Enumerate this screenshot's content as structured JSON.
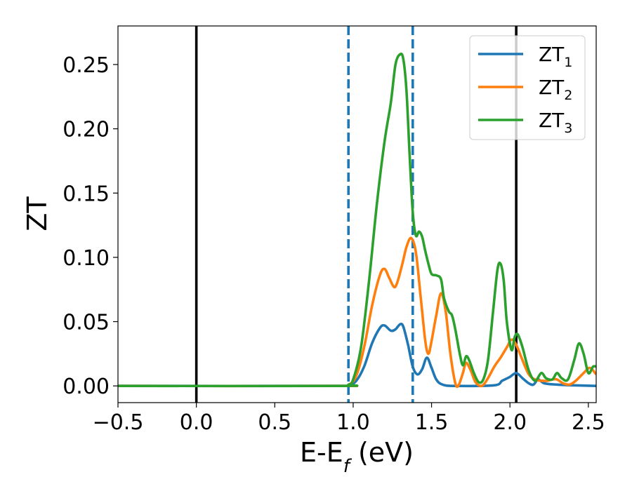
{
  "chart_data": {
    "type": "line",
    "xlabel": "E-E",
    "xlabel_sub": "f",
    "xlabel_unit": " (eV)",
    "ylabel": "ZT",
    "xlim": [
      -0.5,
      2.55
    ],
    "ylim": [
      -0.013,
      0.28
    ],
    "x_ticks": [
      -0.5,
      0.0,
      0.5,
      1.0,
      1.5,
      2.0,
      2.5
    ],
    "x_tick_labels": [
      "−0.5",
      "0.0",
      "0.5",
      "1.0",
      "1.5",
      "2.0",
      "2.5"
    ],
    "y_ticks": [
      0.0,
      0.05,
      0.1,
      0.15,
      0.2,
      0.25
    ],
    "y_tick_labels": [
      "0.00",
      "0.05",
      "0.10",
      "0.15",
      "0.20",
      "0.25"
    ],
    "grid": false,
    "legend_position": "top-right",
    "vertical_lines": [
      {
        "x": 0.0,
        "style": "solid",
        "color": "#000000"
      },
      {
        "x": 2.04,
        "style": "solid",
        "color": "#000000"
      },
      {
        "x": 0.97,
        "style": "dashed",
        "color": "#1f77b4"
      },
      {
        "x": 1.38,
        "style": "dashed",
        "color": "#1f77b4"
      }
    ],
    "series": [
      {
        "name": "ZT",
        "name_sub": "1",
        "color": "#1f77b4",
        "points": [
          [
            -0.5,
            0
          ],
          [
            0.9,
            0
          ],
          [
            0.97,
            0.0005
          ],
          [
            1.02,
            0.004
          ],
          [
            1.07,
            0.015
          ],
          [
            1.12,
            0.033
          ],
          [
            1.17,
            0.045
          ],
          [
            1.2,
            0.047
          ],
          [
            1.24,
            0.043
          ],
          [
            1.27,
            0.044
          ],
          [
            1.3,
            0.048
          ],
          [
            1.32,
            0.046
          ],
          [
            1.35,
            0.032
          ],
          [
            1.38,
            0.015
          ],
          [
            1.41,
            0.009
          ],
          [
            1.44,
            0.013
          ],
          [
            1.47,
            0.022
          ],
          [
            1.5,
            0.014
          ],
          [
            1.53,
            0.005
          ],
          [
            1.57,
            0.001
          ],
          [
            1.65,
            0
          ],
          [
            1.9,
            0.0005
          ],
          [
            1.95,
            0.004
          ],
          [
            2.0,
            0.007
          ],
          [
            2.04,
            0.01
          ],
          [
            2.08,
            0.006
          ],
          [
            2.12,
            0.002
          ],
          [
            2.15,
            0.001
          ],
          [
            2.18,
            0.005
          ],
          [
            2.22,
            0.002
          ],
          [
            2.3,
            0.001
          ],
          [
            2.4,
            0.0005
          ],
          [
            2.55,
            0
          ]
        ]
      },
      {
        "name": "ZT",
        "name_sub": "2",
        "color": "#ff7f0e",
        "points": [
          [
            -0.5,
            0
          ],
          [
            0.9,
            0
          ],
          [
            0.97,
            0.0008
          ],
          [
            1.02,
            0.008
          ],
          [
            1.07,
            0.03
          ],
          [
            1.12,
            0.062
          ],
          [
            1.17,
            0.086
          ],
          [
            1.2,
            0.091
          ],
          [
            1.23,
            0.084
          ],
          [
            1.26,
            0.077
          ],
          [
            1.28,
            0.08
          ],
          [
            1.31,
            0.093
          ],
          [
            1.34,
            0.108
          ],
          [
            1.37,
            0.115
          ],
          [
            1.4,
            0.104
          ],
          [
            1.43,
            0.07
          ],
          [
            1.46,
            0.035
          ],
          [
            1.48,
            0.025
          ],
          [
            1.5,
            0.035
          ],
          [
            1.53,
            0.055
          ],
          [
            1.56,
            0.072
          ],
          [
            1.59,
            0.058
          ],
          [
            1.62,
            0.025
          ],
          [
            1.65,
            0.003
          ],
          [
            1.67,
            0.0
          ],
          [
            1.7,
            0.01
          ],
          [
            1.72,
            0.018
          ],
          [
            1.75,
            0.012
          ],
          [
            1.78,
            0.003
          ],
          [
            1.82,
            0.0
          ],
          [
            1.86,
            0.006
          ],
          [
            1.9,
            0.015
          ],
          [
            1.94,
            0.022
          ],
          [
            1.98,
            0.03
          ],
          [
            2.01,
            0.036
          ],
          [
            2.04,
            0.032
          ],
          [
            2.08,
            0.02
          ],
          [
            2.12,
            0.009
          ],
          [
            2.16,
            0.005
          ],
          [
            2.2,
            0.004
          ],
          [
            2.24,
            0.004
          ],
          [
            2.27,
            0.005
          ],
          [
            2.3,
            0.005
          ],
          [
            2.34,
            0.002
          ],
          [
            2.38,
            0.001
          ],
          [
            2.42,
            0.004
          ],
          [
            2.47,
            0.01
          ],
          [
            2.51,
            0.014
          ],
          [
            2.55,
            0.009
          ]
        ]
      },
      {
        "name": "ZT",
        "name_sub": "3",
        "color": "#2ca02c",
        "points": [
          [
            -0.5,
            0
          ],
          [
            0.9,
            0
          ],
          [
            0.97,
            0.001
          ],
          [
            1.0,
            0.005
          ],
          [
            1.05,
            0.03
          ],
          [
            1.1,
            0.08
          ],
          [
            1.15,
            0.14
          ],
          [
            1.2,
            0.19
          ],
          [
            1.24,
            0.22
          ],
          [
            1.27,
            0.25
          ],
          [
            1.3,
            0.258
          ],
          [
            1.32,
            0.254
          ],
          [
            1.34,
            0.23
          ],
          [
            1.36,
            0.18
          ],
          [
            1.38,
            0.135
          ],
          [
            1.4,
            0.117
          ],
          [
            1.42,
            0.12
          ],
          [
            1.44,
            0.116
          ],
          [
            1.46,
            0.105
          ],
          [
            1.48,
            0.095
          ],
          [
            1.5,
            0.087
          ],
          [
            1.53,
            0.086
          ],
          [
            1.56,
            0.083
          ],
          [
            1.58,
            0.068
          ],
          [
            1.61,
            0.058
          ],
          [
            1.63,
            0.055
          ],
          [
            1.65,
            0.045
          ],
          [
            1.68,
            0.025
          ],
          [
            1.7,
            0.016
          ],
          [
            1.72,
            0.023
          ],
          [
            1.74,
            0.02
          ],
          [
            1.77,
            0.01
          ],
          [
            1.8,
            0.003
          ],
          [
            1.83,
            0.005
          ],
          [
            1.86,
            0.02
          ],
          [
            1.89,
            0.055
          ],
          [
            1.92,
            0.09
          ],
          [
            1.94,
            0.095
          ],
          [
            1.96,
            0.082
          ],
          [
            1.98,
            0.05
          ],
          [
            2.01,
            0.028
          ],
          [
            2.03,
            0.038
          ],
          [
            2.05,
            0.04
          ],
          [
            2.08,
            0.03
          ],
          [
            2.12,
            0.012
          ],
          [
            2.16,
            0.004
          ],
          [
            2.2,
            0.01
          ],
          [
            2.23,
            0.006
          ],
          [
            2.27,
            0.005
          ],
          [
            2.3,
            0.01
          ],
          [
            2.33,
            0.006
          ],
          [
            2.37,
            0.005
          ],
          [
            2.41,
            0.02
          ],
          [
            2.44,
            0.033
          ],
          [
            2.47,
            0.025
          ],
          [
            2.5,
            0.01
          ],
          [
            2.53,
            0.015
          ],
          [
            2.55,
            0.015
          ]
        ]
      }
    ]
  }
}
